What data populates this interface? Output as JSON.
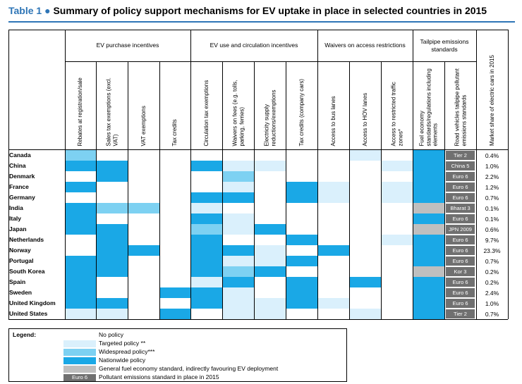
{
  "title": {
    "number": "Table 1",
    "bullet": "●",
    "text": "Summary of policy support mechanisms for EV uptake in place in selected countries in 2015"
  },
  "colors": {
    "none": "#ffffff",
    "targeted": "#daf0fc",
    "widespread": "#7dd1f2",
    "nationwide": "#1aa8e6",
    "general": "#bfbfbf",
    "std_box": "#707070"
  },
  "groups": [
    {
      "label": "EV purchase incentives"
    },
    {
      "label": "EV use and circulation incentives"
    },
    {
      "label": "Waivers on access restrictions"
    },
    {
      "label": "Tailpipe emissions standards"
    }
  ],
  "columns": [
    "Rebates at registration/sale",
    "Sales tax exemptions (excl. VAT)",
    "VAT exemptions",
    "Tax credits",
    "Circulation tax exemptions",
    "Waivers on fees (e.g. tolls, parking, ferries)",
    "Electricity supply reductions/exemptions",
    "Tax credits (company cars)",
    "Access to bus lanes",
    "Access to HOV lanes",
    "Access to restricted traffic zones*",
    "Fuel economy standards/regulations including elements",
    "Road vehicles tailpipe pollutant emissions standards",
    "Market share of electric cars in 2015"
  ],
  "rows": [
    {
      "country": "Canada",
      "cells": [
        "W",
        "0",
        "0",
        "0",
        "0",
        "0",
        "0",
        "0",
        "0",
        "T",
        "0",
        "N"
      ],
      "standard": "Tier 2",
      "share": "0.4%"
    },
    {
      "country": "China",
      "cells": [
        "N",
        "N",
        "0",
        "0",
        "N",
        "T",
        "T",
        "0",
        "0",
        "0",
        "T",
        "N"
      ],
      "standard": "China 5",
      "share": "1.0%"
    },
    {
      "country": "Denmark",
      "cells": [
        "0",
        "N",
        "0",
        "0",
        "0",
        "W",
        "0",
        "0",
        "0",
        "0",
        "0",
        "N"
      ],
      "standard": "Euro 6",
      "share": "2.2%"
    },
    {
      "country": "France",
      "cells": [
        "N",
        "0",
        "0",
        "0",
        "0",
        "T",
        "0",
        "N",
        "T",
        "0",
        "T",
        "N"
      ],
      "standard": "Euro 6",
      "share": "1.2%"
    },
    {
      "country": "Germany",
      "cells": [
        "0",
        "0",
        "0",
        "0",
        "N",
        "N",
        "0",
        "N",
        "T",
        "0",
        "T",
        "N"
      ],
      "standard": "Euro 6",
      "share": "0.7%"
    },
    {
      "country": "India",
      "cells": [
        "N",
        "W",
        "W",
        "0",
        "T",
        "0",
        "0",
        "0",
        "0",
        "0",
        "0",
        "G"
      ],
      "standard": "Bharat 3",
      "share": "0.1%"
    },
    {
      "country": "Italy",
      "cells": [
        "N",
        "0",
        "0",
        "0",
        "N",
        "T",
        "0",
        "0",
        "0",
        "0",
        "0",
        "N"
      ],
      "standard": "Euro 6",
      "share": "0.1%"
    },
    {
      "country": "Japan",
      "cells": [
        "N",
        "N",
        "0",
        "0",
        "W",
        "T",
        "N",
        "0",
        "0",
        "0",
        "0",
        "G"
      ],
      "standard": "JPN 2009",
      "share": "0.6%"
    },
    {
      "country": "Netherlands",
      "cells": [
        "0",
        "N",
        "0",
        "0",
        "N",
        "0",
        "0",
        "N",
        "0",
        "0",
        "T",
        "N"
      ],
      "standard": "Euro 6",
      "share": "9.7%"
    },
    {
      "country": "Norway",
      "cells": [
        "0",
        "N",
        "N",
        "0",
        "N",
        "N",
        "T",
        "0",
        "N",
        "0",
        "0",
        "N"
      ],
      "standard": "Euro 6",
      "share": "23.3%"
    },
    {
      "country": "Portugal",
      "cells": [
        "N",
        "N",
        "0",
        "0",
        "N",
        "T",
        "T",
        "N",
        "0",
        "0",
        "0",
        "N"
      ],
      "standard": "Euro 6",
      "share": "0.7%"
    },
    {
      "country": "South Korea",
      "cells": [
        "N",
        "N",
        "0",
        "0",
        "N",
        "W",
        "N",
        "0",
        "0",
        "0",
        "0",
        "G"
      ],
      "standard": "Kor 3",
      "share": "0.2%"
    },
    {
      "country": "Spain",
      "cells": [
        "N",
        "0",
        "0",
        "0",
        "T",
        "N",
        "0",
        "N",
        "0",
        "N",
        "0",
        "N"
      ],
      "standard": "Euro 6",
      "share": "0.2%"
    },
    {
      "country": "Sweden",
      "cells": [
        "N",
        "0",
        "0",
        "N",
        "N",
        "T",
        "0",
        "N",
        "0",
        "0",
        "0",
        "N"
      ],
      "standard": "Euro 6",
      "share": "2.4%"
    },
    {
      "country": "United Kingdom",
      "cells": [
        "N",
        "N",
        "0",
        "0",
        "N",
        "T",
        "T",
        "N",
        "T",
        "0",
        "0",
        "N"
      ],
      "standard": "Euro 6",
      "share": "1.0%"
    },
    {
      "country": "United States",
      "cells": [
        "T",
        "T",
        "0",
        "N",
        "0",
        "T",
        "T",
        "0",
        "0",
        "T",
        "0",
        "N"
      ],
      "standard": "Tier 2",
      "share": "0.7%"
    }
  ],
  "legend": {
    "title": "Legend:",
    "items": [
      {
        "key": "0",
        "label": "No policy"
      },
      {
        "key": "T",
        "label": "Targeted policy **"
      },
      {
        "key": "W",
        "label": "Widespread policy***"
      },
      {
        "key": "N",
        "label": "Nationwide policy"
      },
      {
        "key": "G",
        "label": "General fuel economy standard, indirectly favouring EV deployment"
      },
      {
        "key": "S",
        "label": "Pollutant emissions standard in place in 2015",
        "example": "Euro 6"
      }
    ]
  }
}
